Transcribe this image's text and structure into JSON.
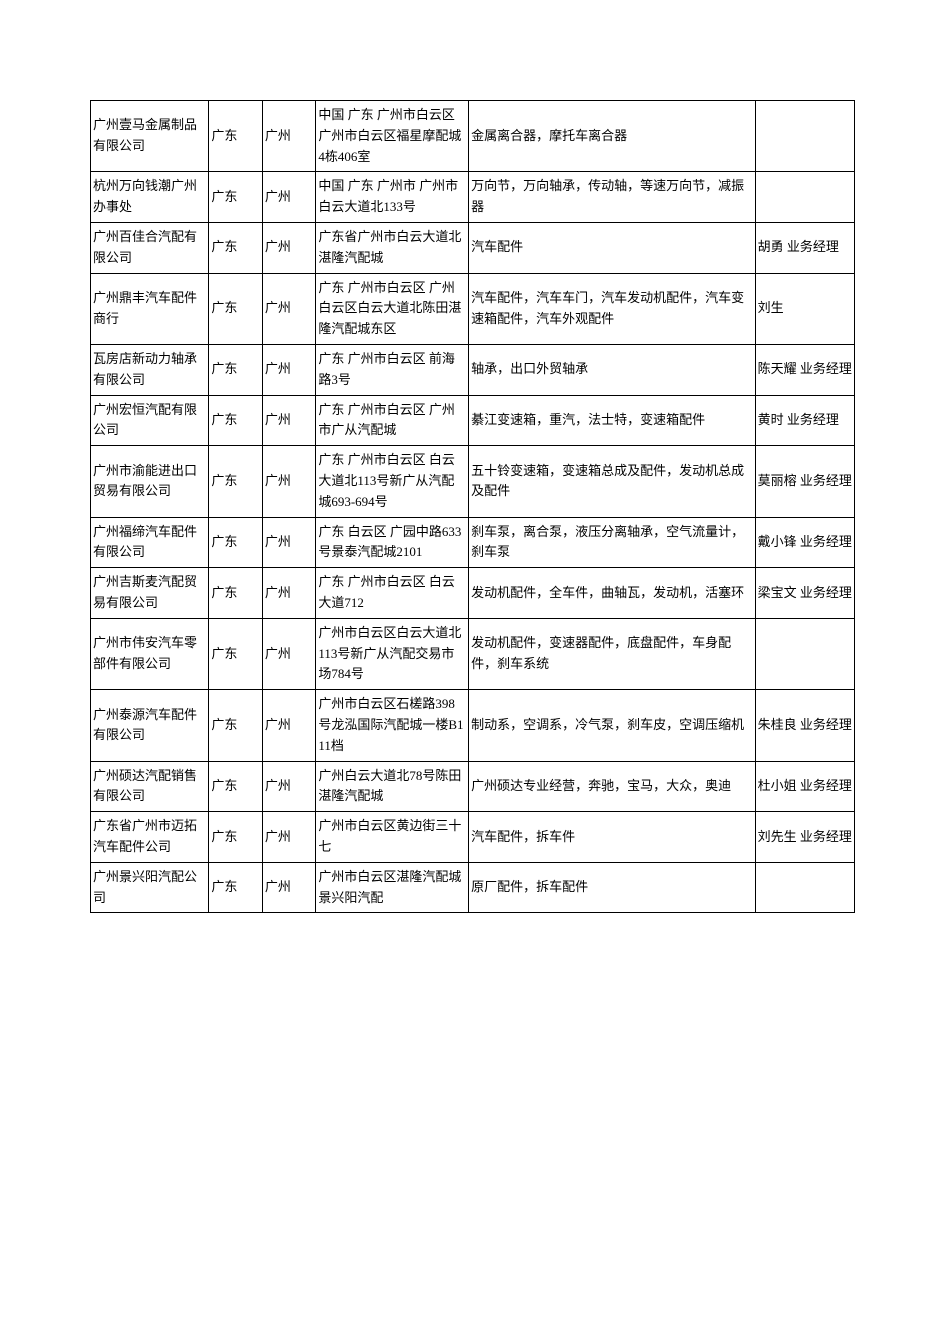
{
  "table": {
    "columns": [
      {
        "key": "company",
        "class": "col-company"
      },
      {
        "key": "province",
        "class": "col-province"
      },
      {
        "key": "city",
        "class": "col-city"
      },
      {
        "key": "address",
        "class": "col-address"
      },
      {
        "key": "products",
        "class": "col-products"
      },
      {
        "key": "contact",
        "class": "col-contact"
      }
    ],
    "rows": [
      {
        "company": "广州壹马金属制品有限公司",
        "province": "广东",
        "city": "广州",
        "address": "中国 广东 广州市白云区 广州市白云区福星摩配城4栋406室",
        "products": "金属离合器，摩托车离合器",
        "contact": ""
      },
      {
        "company": "杭州万向钱潮广州办事处",
        "province": "广东",
        "city": "广州",
        "address": "中国 广东 广州市 广州市白云大道北133号",
        "products": "万向节，万向轴承，传动轴，等速万向节，减振器",
        "contact": ""
      },
      {
        "company": "广州百佳合汽配有限公司",
        "province": "广东",
        "city": "广州",
        "address": "广东省广州市白云大道北湛隆汽配城",
        "products": "汽车配件",
        "contact": "胡勇 业务经理"
      },
      {
        "company": "广州鼎丰汽车配件商行",
        "province": "广东",
        "city": "广州",
        "address": "广东 广州市白云区 广州白云区白云大道北陈田湛隆汽配城东区",
        "products": "汽车配件，汽车车门，汽车发动机配件，汽车变速箱配件，汽车外观配件",
        "contact": "刘生"
      },
      {
        "company": "瓦房店新动力轴承有限公司",
        "province": "广东",
        "city": "广州",
        "address": "广东 广州市白云区 前海路3号",
        "products": "轴承，出口外贸轴承",
        "contact": "陈天耀 业务经理"
      },
      {
        "company": "广州宏恒汽配有限公司",
        "province": "广东",
        "city": "广州",
        "address": "广东 广州市白云区 广州市广从汽配城",
        "products": "綦江变速箱，重汽，法士特，变速箱配件",
        "contact": "黄时 业务经理"
      },
      {
        "company": "广州市渝能进出口贸易有限公司",
        "province": "广东",
        "city": "广州",
        "address": "广东 广州市白云区 白云大道北113号新广从汽配城693-694号",
        "products": "五十铃变速箱，变速箱总成及配件，发动机总成及配件",
        "contact": "莫丽榕 业务经理"
      },
      {
        "company": "广州福缔汽车配件有限公司",
        "province": "广东",
        "city": "广州",
        "address": "广东 白云区 广园中路633号景泰汽配城2101",
        "products": "刹车泵，离合泵，液压分离轴承，空气流量计，刹车泵",
        "contact": "戴小锋 业务经理"
      },
      {
        "company": "广州吉斯麦汽配贸易有限公司",
        "province": "广东",
        "city": "广州",
        "address": "广东 广州市白云区 白云大道712",
        "products": "发动机配件，全车件，曲轴瓦，发动机，活塞环",
        "contact": "梁宝文 业务经理"
      },
      {
        "company": "广州市伟安汽车零部件有限公司",
        "province": "广东",
        "city": "广州",
        "address": "广州市白云区白云大道北113号新广从汽配交易市场784号",
        "products": "发动机配件，变速器配件，底盘配件，车身配件，刹车系统",
        "contact": ""
      },
      {
        "company": "广州泰源汽车配件有限公司",
        "province": "广东",
        "city": "广州",
        "address": "广州市白云区石槎路398号龙泓国际汽配城一楼B111档",
        "products": "制动系，空调系，冷气泵，刹车皮，空调压缩机",
        "contact": "朱桂良 业务经理"
      },
      {
        "company": "广州硕达汽配销售有限公司",
        "province": "广东",
        "city": "广州",
        "address": "广州白云大道北78号陈田湛隆汽配城",
        "products": "广州硕达专业经营，奔驰，宝马，大众，奥迪",
        "contact": "杜小姐 业务经理"
      },
      {
        "company": "广东省广州市迈拓汽车配件公司",
        "province": "广东",
        "city": "广州",
        "address": "广州市白云区黄边街三十七",
        "products": "汽车配件，拆车件",
        "contact": "刘先生 业务经理"
      },
      {
        "company": "广州景兴阳汽配公司",
        "province": "广东",
        "city": "广州",
        "address": "广州市白云区湛隆汽配城景兴阳汽配",
        "products": "原厂配件，拆车配件",
        "contact": ""
      }
    ],
    "border_color": "#000000",
    "background_color": "#ffffff",
    "font_size": 13,
    "text_color": "#000000"
  }
}
